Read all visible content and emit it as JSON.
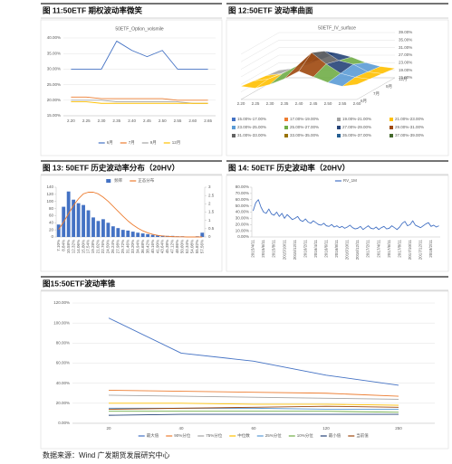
{
  "chart_data": [
    {
      "type": "line",
      "title": "图 11:50ETF 期权波动率微笑",
      "subtitle": "50ETF_Option_volsmile",
      "categories": [
        "2.20",
        "2.25",
        "2.30",
        "2.35",
        "2.40",
        "2.45",
        "2.50",
        "2.55",
        "2.60",
        "2.65"
      ],
      "series": [
        {
          "name": "6月",
          "color": "#4472c4",
          "values": [
            30,
            30,
            30,
            39,
            36,
            34,
            36,
            30,
            30,
            30
          ]
        },
        {
          "name": "7月",
          "color": "#ed7d31",
          "values": [
            21,
            21,
            20.5,
            20.5,
            20.5,
            20.5,
            20.5,
            20,
            20,
            20
          ]
        },
        {
          "name": "9月",
          "color": "#a5a5a5",
          "values": [
            20,
            20,
            20,
            19.5,
            19.5,
            19.5,
            19.5,
            19.5,
            19,
            19
          ]
        },
        {
          "name": "12月",
          "color": "#ffc000",
          "values": [
            19.5,
            19.5,
            19,
            19,
            19,
            19,
            19,
            19,
            19,
            19
          ]
        }
      ],
      "ylim": [
        15,
        40
      ],
      "yticks": [
        {
          "value": 15,
          "label": "15.00%"
        },
        {
          "value": 20,
          "label": "20.00%"
        },
        {
          "value": 25,
          "label": "25.00%"
        },
        {
          "value": 30,
          "label": "30.00%"
        },
        {
          "value": 35,
          "label": "35.00%"
        },
        {
          "value": 40,
          "label": "40.00%"
        }
      ],
      "grid": true,
      "legend": "bottom"
    },
    {
      "type": "surface",
      "title": "图 12:50ETF 波动率曲面",
      "subtitle": "50ETF_IV_surface",
      "categories": [
        "2.20",
        "2.25",
        "2.30",
        "2.35",
        "2.40",
        "2.45",
        "2.50",
        "2.55",
        "2.60"
      ],
      "rows": [
        "6月",
        "7月",
        "9月",
        "12月"
      ],
      "values": [
        [
          22,
          21,
          23,
          26,
          30,
          27,
          24,
          22,
          23
        ],
        [
          21,
          22,
          25,
          29,
          36,
          30,
          25,
          23,
          22
        ],
        [
          20,
          21,
          24,
          27,
          33,
          28,
          26,
          22,
          21
        ],
        [
          19,
          20,
          22,
          25,
          28,
          26,
          23,
          21,
          20
        ]
      ],
      "zlim": [
        15,
        39
      ],
      "zticks": [
        {
          "value": 15,
          "label": "15.00%"
        },
        {
          "value": 19,
          "label": "19.00%"
        },
        {
          "value": 23,
          "label": "23.00%"
        },
        {
          "value": 27,
          "label": "27.00%"
        },
        {
          "value": 31,
          "label": "31.00%"
        },
        {
          "value": 35,
          "label": "35.00%"
        },
        {
          "value": 39,
          "label": "39.00%"
        }
      ],
      "bands": [
        {
          "from": 15,
          "to": 17,
          "label": "15.00%-17.00%",
          "color": "#4472c4"
        },
        {
          "from": 17,
          "to": 19,
          "label": "17.00%-19.00%",
          "color": "#ed7d31"
        },
        {
          "from": 19,
          "to": 21,
          "label": "19.00%-21.00%",
          "color": "#a5a5a5"
        },
        {
          "from": 21,
          "to": 23,
          "label": "21.00%-23.00%",
          "color": "#ffc000"
        },
        {
          "from": 23,
          "to": 25,
          "label": "23.00%-25.00%",
          "color": "#5b9bd5"
        },
        {
          "from": 25,
          "to": 27,
          "label": "25.00%-27.00%",
          "color": "#70ad47"
        },
        {
          "from": 27,
          "to": 29,
          "label": "27.00%-29.00%",
          "color": "#264478"
        },
        {
          "from": 29,
          "to": 31,
          "label": "29.00%-31.00%",
          "color": "#9e480e"
        },
        {
          "from": 31,
          "to": 33,
          "label": "31.00%-33.00%",
          "color": "#636363"
        },
        {
          "from": 33,
          "to": 35,
          "label": "33.00%-35.00%",
          "color": "#997300"
        },
        {
          "from": 35,
          "to": 37,
          "label": "35.00%-37.00%",
          "color": "#255e91"
        },
        {
          "from": 37,
          "to": 39,
          "label": "37.00%-39.00%",
          "color": "#43682b"
        }
      ],
      "legend": "bottom"
    },
    {
      "type": "bar",
      "title": "图 13: 50ETF 历史波动率分布（20HV）",
      "categories": [
        "7.10%",
        "8.84%",
        "10.58%",
        "12.32%",
        "14.06%",
        "15.80%",
        "17.54%",
        "19.28%",
        "21.02%",
        "22.76%",
        "24.50%",
        "26.24%",
        "27.98%",
        "29.72%",
        "31.46%",
        "33.20%",
        "34.94%",
        "36.68%",
        "38.42%",
        "40.16%",
        "41.90%",
        "43.64%",
        "45.38%",
        "47.12%",
        "48.86%",
        "50.60%",
        "52.34%",
        "54.08%",
        "55.82%",
        "57.56%"
      ],
      "series": [
        {
          "name": "频率",
          "color": "#4472c4",
          "values": [
            35,
            85,
            128,
            105,
            95,
            90,
            75,
            55,
            45,
            50,
            40,
            30,
            25,
            20,
            18,
            15,
            12,
            10,
            8,
            6,
            5,
            4,
            3,
            3,
            2,
            2,
            1,
            1,
            2,
            12
          ]
        },
        {
          "name": "正态分布",
          "type": "line",
          "axis": "y2",
          "color": "#ed7d31",
          "values": [
            0.45,
            0.9,
            1.4,
            1.9,
            2.3,
            2.6,
            2.7,
            2.7,
            2.6,
            2.4,
            2.15,
            1.85,
            1.55,
            1.25,
            0.97,
            0.73,
            0.53,
            0.37,
            0.25,
            0.16,
            0.1,
            0.06,
            0.04,
            0.02,
            0.01,
            0.01,
            0,
            0,
            0,
            0
          ]
        }
      ],
      "ylim": [
        0,
        140
      ],
      "yticks": [
        0,
        20,
        40,
        60,
        80,
        100,
        120,
        140
      ],
      "y2lim": [
        0,
        3
      ],
      "y2ticks": [
        0,
        0.5,
        1,
        1.5,
        2,
        2.5,
        3
      ],
      "grid": false,
      "legend": "top"
    },
    {
      "type": "line",
      "title": "图 14: 50ETF 历史波动率（20HV）",
      "categories": [
        "2015/4/11",
        null,
        null,
        null,
        "2015/6/11",
        null,
        null,
        null,
        "2015/8/11",
        null,
        null,
        null,
        "2015/10/11",
        null,
        null,
        null,
        "2015/12/11",
        null,
        null,
        null,
        "2016/2/11",
        null,
        null,
        null,
        "2016/4/11",
        null,
        null,
        null,
        "2016/6/11",
        null,
        null,
        null,
        "2016/8/11",
        null,
        null,
        null,
        "2016/10/11",
        null,
        null,
        null,
        "2016/12/11",
        null,
        null,
        null,
        "2017/2/11",
        null,
        null,
        null,
        "2017/4/11",
        null,
        null,
        null,
        "2017/6/11",
        null,
        null,
        null,
        "2017/8/11",
        null,
        null,
        null,
        "2017/10/11",
        null,
        null,
        null,
        "2017/12/11",
        null,
        null,
        null,
        "2018/2/11",
        null,
        null,
        null
      ],
      "series": [
        {
          "name": "RV_1M",
          "color": "#4472c4",
          "values": [
            42,
            55,
            60,
            48,
            40,
            38,
            45,
            37,
            35,
            40,
            33,
            38,
            30,
            36,
            32,
            28,
            30,
            33,
            27,
            25,
            29,
            24,
            22,
            26,
            23,
            20,
            19,
            22,
            18,
            17,
            20,
            16,
            18,
            15,
            17,
            14,
            16,
            19,
            15,
            13,
            14,
            17,
            12,
            15,
            18,
            14,
            13,
            16,
            12,
            15,
            17,
            13,
            14,
            18,
            15,
            12,
            16,
            22,
            25,
            18,
            20,
            26,
            19,
            17,
            15,
            18,
            21,
            23,
            17,
            19,
            16,
            18
          ]
        }
      ],
      "ylim": [
        0,
        80
      ],
      "yticks": [
        {
          "value": 0,
          "label": "0.00%"
        },
        {
          "value": 10,
          "label": "10.00%"
        },
        {
          "value": 20,
          "label": "20.00%"
        },
        {
          "value": 30,
          "label": "30.00%"
        },
        {
          "value": 40,
          "label": "40.00%"
        },
        {
          "value": 50,
          "label": "50.00%"
        },
        {
          "value": 60,
          "label": "60.00%"
        },
        {
          "value": 70,
          "label": "70.00%"
        },
        {
          "value": 80,
          "label": "80.00%"
        }
      ],
      "grid": false,
      "legend": "top"
    },
    {
      "type": "line",
      "title": "图15:50ETF波动率锥",
      "categories": [
        "20",
        "40",
        "60",
        "120",
        "250"
      ],
      "series": [
        {
          "name": "最大值",
          "color": "#4472c4",
          "values": [
            105,
            70,
            62,
            48,
            38
          ]
        },
        {
          "name": "90%分位",
          "color": "#ed7d31",
          "values": [
            33,
            32,
            31,
            30,
            27
          ]
        },
        {
          "name": "75%分位",
          "color": "#a5a5a5",
          "values": [
            28,
            27,
            26,
            25,
            24
          ]
        },
        {
          "name": "中位数",
          "color": "#ffc000",
          "values": [
            20,
            20,
            19,
            19,
            18
          ]
        },
        {
          "name": "25%分位",
          "color": "#5b9bd5",
          "values": [
            15,
            15,
            15,
            14,
            14
          ]
        },
        {
          "name": "10%分位",
          "color": "#70ad47",
          "values": [
            12,
            12,
            12,
            12,
            11
          ]
        },
        {
          "name": "最小值",
          "color": "#264478",
          "values": [
            8,
            9,
            9,
            9,
            9
          ]
        },
        {
          "name": "当前值",
          "color": "#9e480e",
          "values": [
            14,
            15,
            16,
            17,
            16
          ]
        }
      ],
      "ylim": [
        0,
        120
      ],
      "yticks": [
        {
          "value": 0,
          "label": "0.00%"
        },
        {
          "value": 20,
          "label": "20.00%"
        },
        {
          "value": 40,
          "label": "40.00%"
        },
        {
          "value": 60,
          "label": "60.00%"
        },
        {
          "value": 80,
          "label": "80.00%"
        },
        {
          "value": 100,
          "label": "100.00%"
        },
        {
          "value": 120,
          "label": "120.00%"
        }
      ],
      "grid": true,
      "legend": "bottom"
    }
  ],
  "source": "数据来源：Wind 广发期货发展研究中心"
}
